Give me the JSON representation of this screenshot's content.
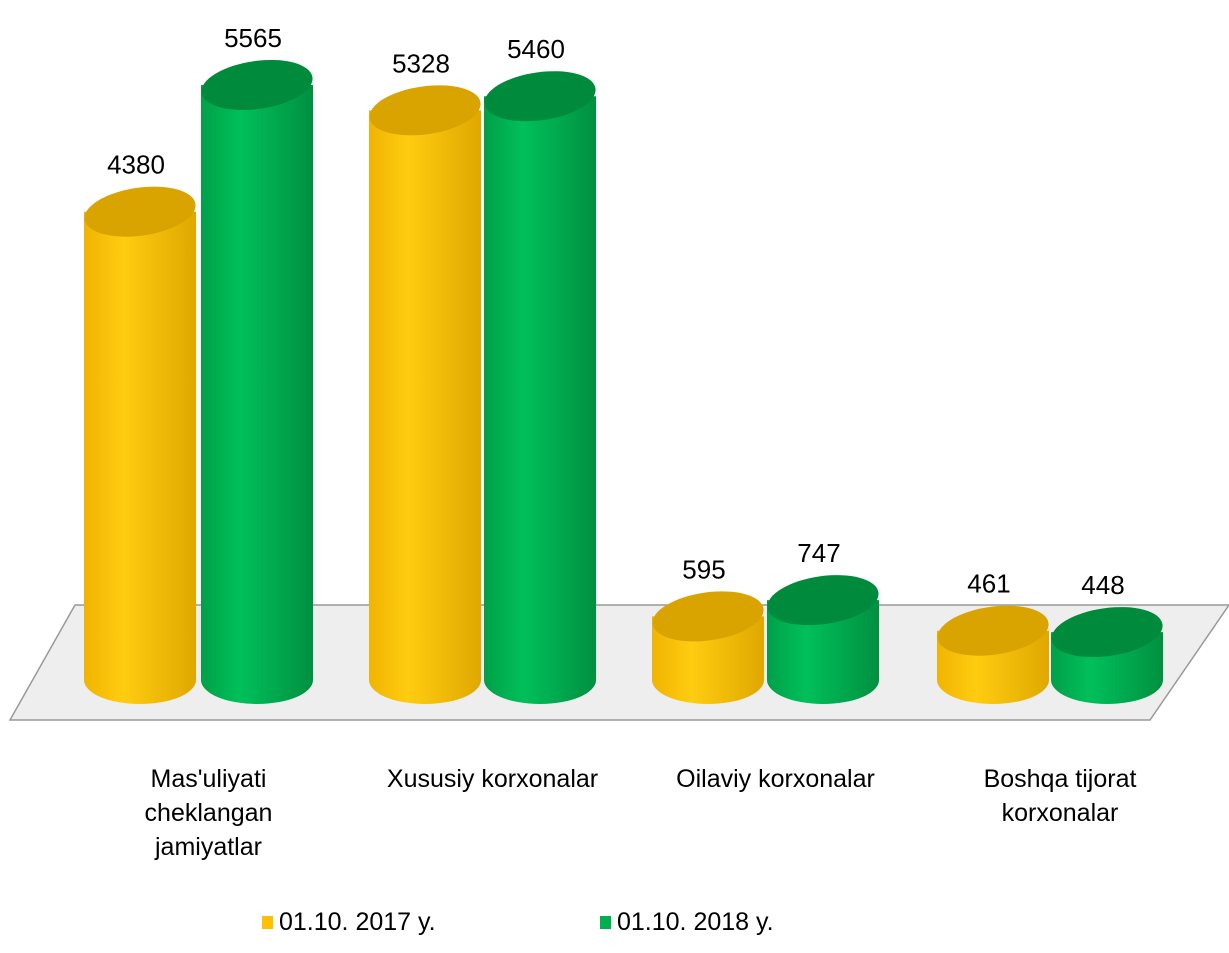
{
  "chart_data": {
    "type": "bar",
    "categories": [
      "Mas'uliyati cheklangan jamiyatlar",
      "Xususiy korxonalar",
      "Oilaviy korxonalar",
      "Boshqa tijorat korxonalar"
    ],
    "series": [
      {
        "name": "01.10. 2017 y.",
        "color": "#ffc000",
        "values": [
          4380,
          5328,
          595,
          461
        ]
      },
      {
        "name": "01.10. 2018 y.",
        "color": "#00b050",
        "values": [
          5565,
          5460,
          747,
          448
        ]
      }
    ]
  }
}
